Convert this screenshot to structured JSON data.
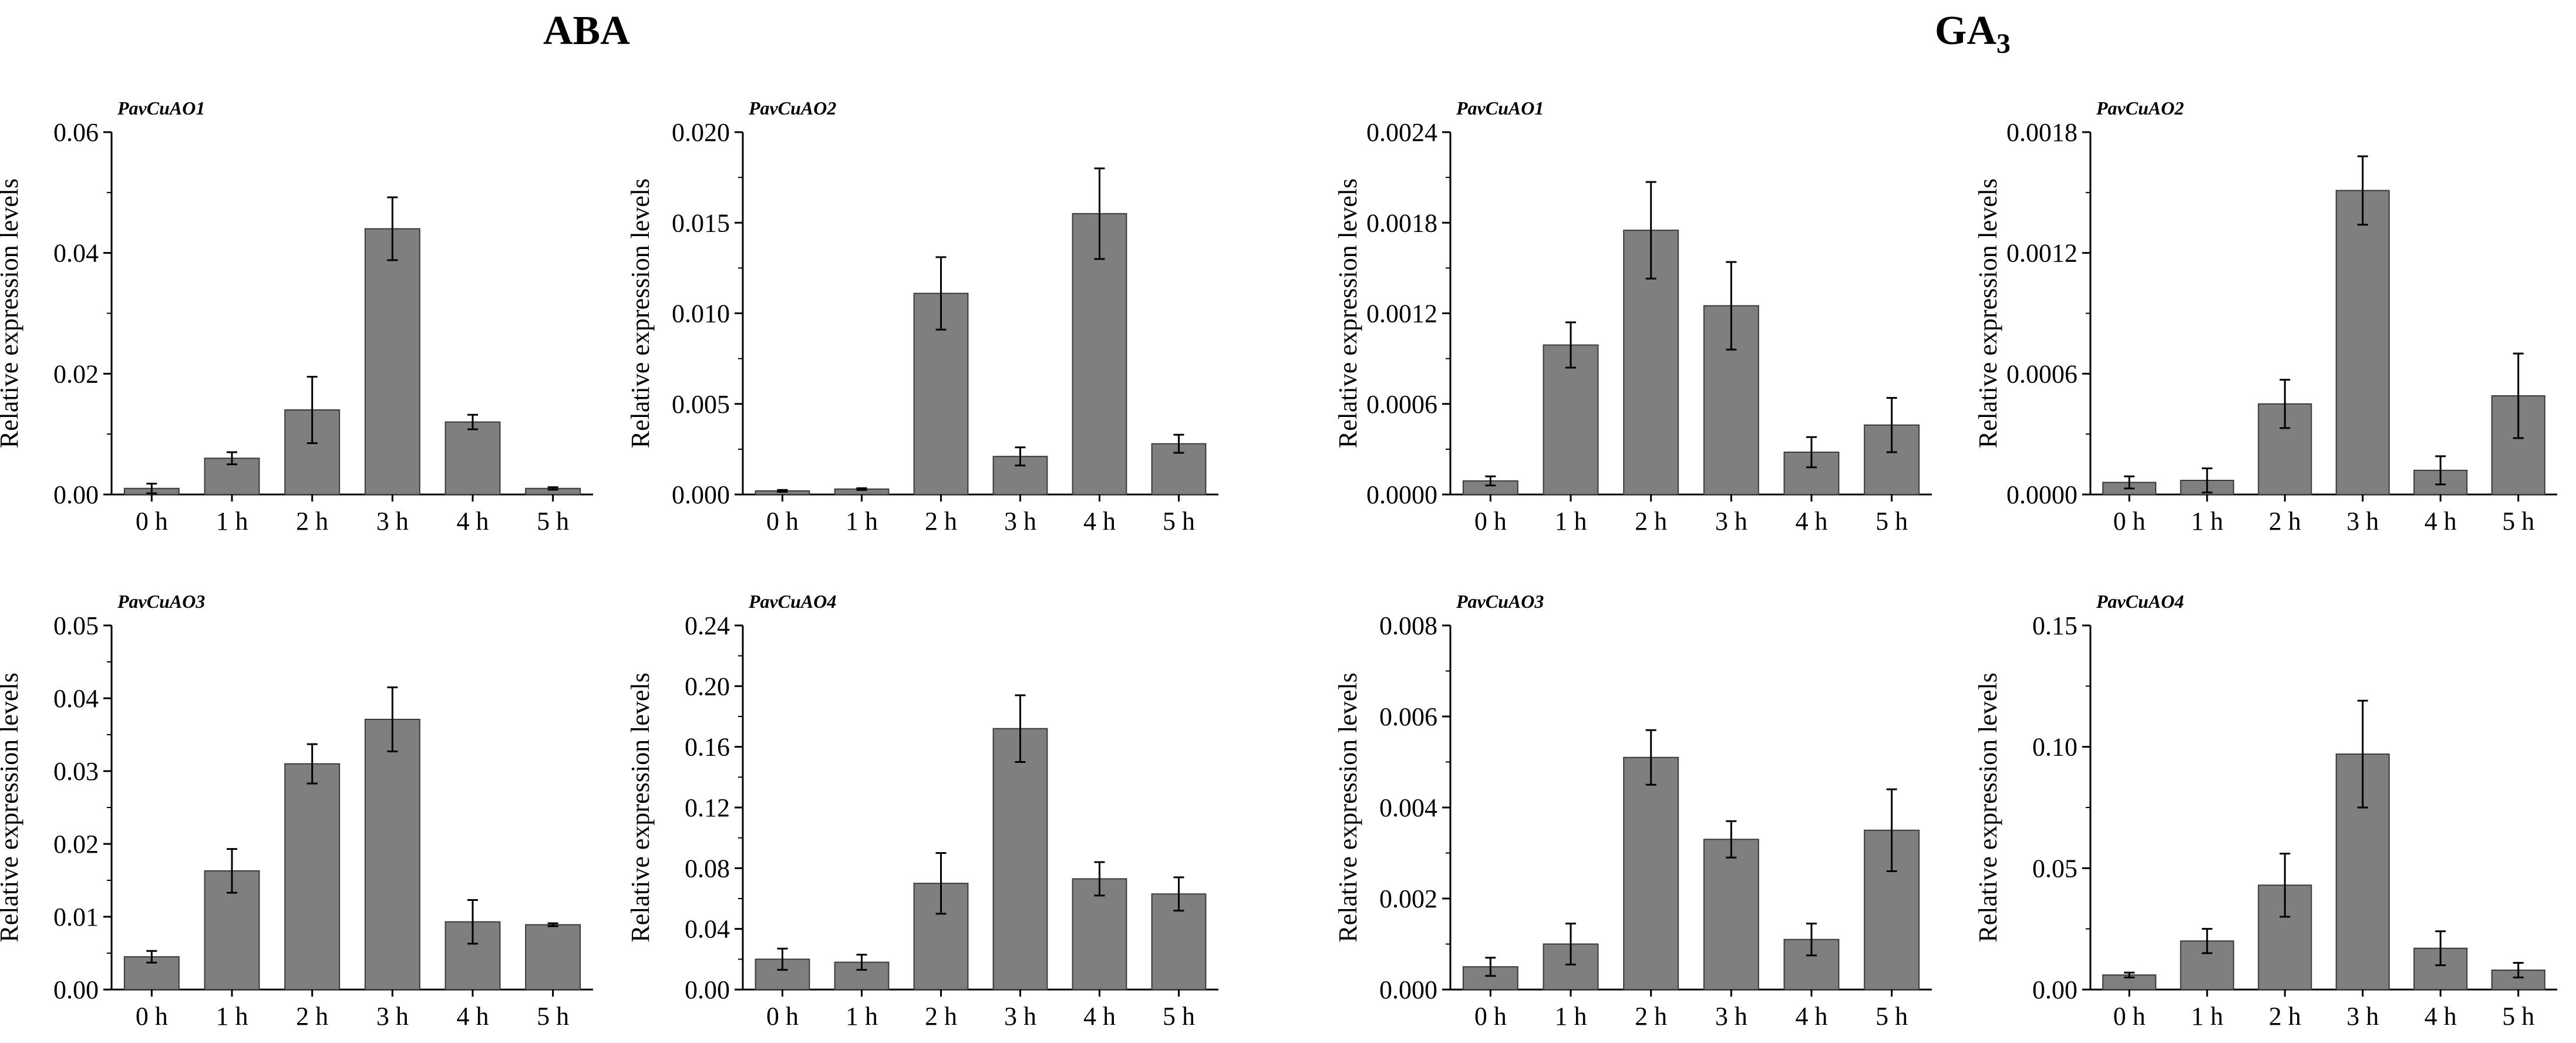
{
  "figure": {
    "groups": [
      {
        "title": "ABA"
      },
      {
        "title": "GA",
        "title_sub": "3"
      }
    ]
  },
  "colors": {
    "bar": "#7f7f7f",
    "bar_edge": "#3a3a3a",
    "axis": "#000000",
    "text": "#000000"
  },
  "chart_data": [
    {
      "group": "ABA",
      "type": "bar",
      "title": "PavCuAO1",
      "xlabel": "",
      "ylabel": "Relative expression levels",
      "categories": [
        "0 h",
        "1 h",
        "2 h",
        "3 h",
        "4 h",
        "5 h"
      ],
      "values": [
        0.001,
        0.006,
        0.014,
        0.044,
        0.012,
        0.001
      ],
      "errors": [
        0.0008,
        0.001,
        0.0055,
        0.0052,
        0.0012,
        0.0002
      ],
      "ylim": [
        0,
        0.06
      ],
      "yticks": [
        "0.00",
        "0.02",
        "0.04",
        "0.06"
      ]
    },
    {
      "group": "ABA",
      "type": "bar",
      "title": "PavCuAO2",
      "xlabel": "",
      "ylabel": "Relative expression levels",
      "categories": [
        "0 h",
        "1 h",
        "2 h",
        "3 h",
        "4 h",
        "5 h"
      ],
      "values": [
        0.0002,
        0.0003,
        0.0111,
        0.0021,
        0.0155,
        0.0028
      ],
      "errors": [
        5e-05,
        5e-05,
        0.002,
        0.0005,
        0.0025,
        0.0005
      ],
      "ylim": [
        0,
        0.02
      ],
      "yticks": [
        "0.000",
        "0.005",
        "0.010",
        "0.015",
        "0.020"
      ]
    },
    {
      "group": "GA3",
      "type": "bar",
      "title": "PavCuAO1",
      "xlabel": "",
      "ylabel": "Relative expression levels",
      "categories": [
        "0 h",
        "1 h",
        "2 h",
        "3 h",
        "4 h",
        "5 h"
      ],
      "values": [
        9e-05,
        0.00099,
        0.00175,
        0.00125,
        0.00028,
        0.00046
      ],
      "errors": [
        3e-05,
        0.00015,
        0.00032,
        0.00029,
        0.0001,
        0.00018
      ],
      "ylim": [
        0,
        0.0024
      ],
      "yticks": [
        "0.0000",
        "0.0006",
        "0.0012",
        "0.0018",
        "0.0024"
      ]
    },
    {
      "group": "GA3",
      "type": "bar",
      "title": "PavCuAO2",
      "xlabel": "",
      "ylabel": "Relative expression levels",
      "categories": [
        "0 h",
        "1 h",
        "2 h",
        "3 h",
        "4 h",
        "5 h"
      ],
      "values": [
        6e-05,
        7e-05,
        0.00045,
        0.00151,
        0.00012,
        0.00049
      ],
      "errors": [
        3e-05,
        6e-05,
        0.00012,
        0.00017,
        7e-05,
        0.00021
      ],
      "ylim": [
        0,
        0.0018
      ],
      "yticks": [
        "0.0000",
        "0.0006",
        "0.0012",
        "0.0018"
      ]
    },
    {
      "group": "ABA",
      "type": "bar",
      "title": "PavCuAO3",
      "xlabel": "",
      "ylabel": "Relative expression levels",
      "categories": [
        "0 h",
        "1 h",
        "2 h",
        "3 h",
        "4 h",
        "5 h"
      ],
      "values": [
        0.0045,
        0.0163,
        0.031,
        0.0371,
        0.0093,
        0.0089
      ],
      "errors": [
        0.0008,
        0.003,
        0.0027,
        0.0044,
        0.003,
        0.0002
      ],
      "ylim": [
        0,
        0.05
      ],
      "yticks": [
        "0.00",
        "0.01",
        "0.02",
        "0.03",
        "0.04",
        "0.05"
      ]
    },
    {
      "group": "ABA",
      "type": "bar",
      "title": "PavCuAO4",
      "xlabel": "",
      "ylabel": "Relative expression levels",
      "categories": [
        "0 h",
        "1 h",
        "2 h",
        "3 h",
        "4 h",
        "5 h"
      ],
      "values": [
        0.02,
        0.018,
        0.07,
        0.172,
        0.073,
        0.063
      ],
      "errors": [
        0.007,
        0.005,
        0.02,
        0.022,
        0.011,
        0.011
      ],
      "ylim": [
        0,
        0.24
      ],
      "yticks": [
        "0.00",
        "0.04",
        "0.08",
        "0.12",
        "0.16",
        "0.20",
        "0.24"
      ]
    },
    {
      "group": "GA3",
      "type": "bar",
      "title": "PavCuAO3",
      "xlabel": "",
      "ylabel": "Relative expression levels",
      "categories": [
        "0 h",
        "1 h",
        "2 h",
        "3 h",
        "4 h",
        "5 h"
      ],
      "values": [
        0.0005,
        0.001,
        0.0051,
        0.0033,
        0.0011,
        0.0035
      ],
      "errors": [
        0.0002,
        0.00045,
        0.0006,
        0.0004,
        0.00035,
        0.0009
      ],
      "ylim": [
        0,
        0.008
      ],
      "yticks": [
        "0.000",
        "0.002",
        "0.004",
        "0.006",
        "0.008"
      ]
    },
    {
      "group": "GA3",
      "type": "bar",
      "title": "PavCuAO4",
      "xlabel": "",
      "ylabel": "Relative expression levels",
      "categories": [
        "0 h",
        "1 h",
        "2 h",
        "3 h",
        "4 h",
        "5 h"
      ],
      "values": [
        0.006,
        0.02,
        0.043,
        0.097,
        0.017,
        0.008
      ],
      "errors": [
        0.001,
        0.005,
        0.013,
        0.022,
        0.007,
        0.003
      ],
      "ylim": [
        0,
        0.15
      ],
      "yticks": [
        "0.00",
        "0.05",
        "0.10",
        "0.15"
      ]
    }
  ]
}
